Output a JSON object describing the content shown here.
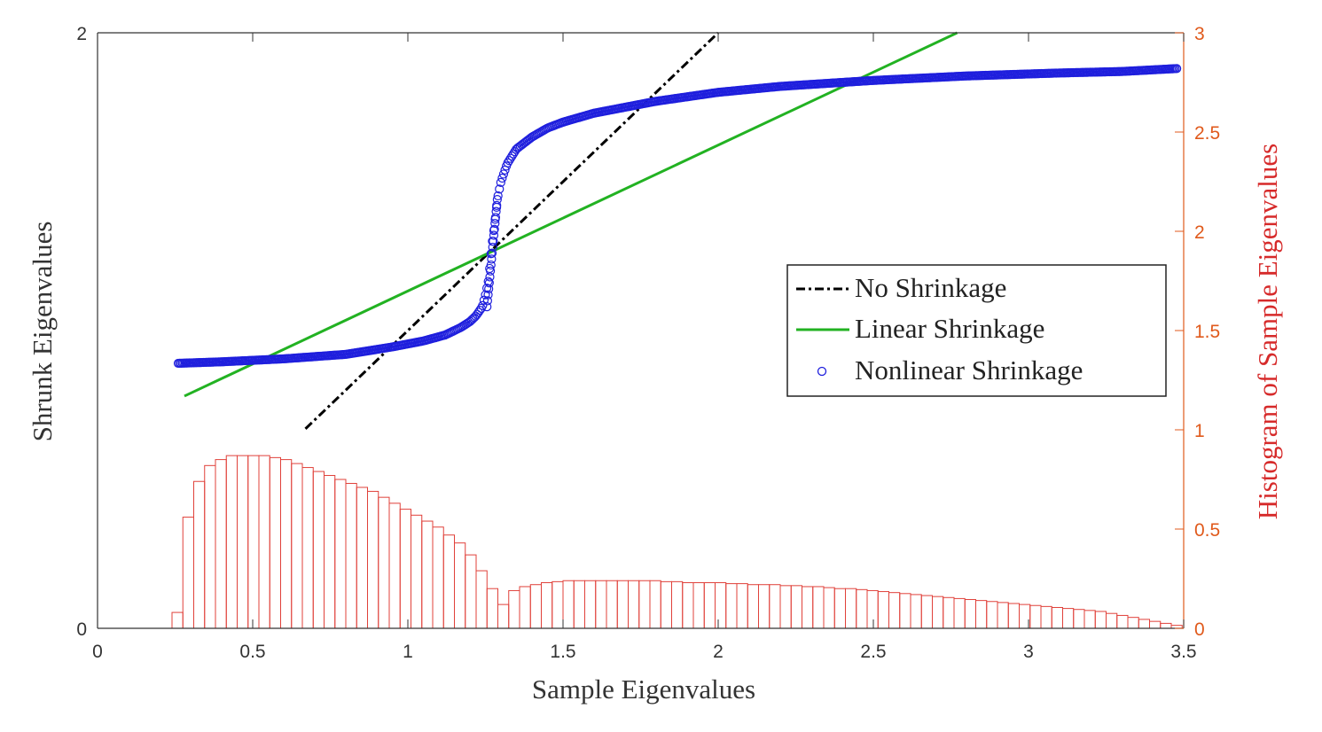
{
  "chart_data": {
    "type": "line",
    "title": "",
    "xlabel": "Sample Eigenvalues",
    "ylabel": "Shrunk Eigenvalues",
    "y2label": "Histogram of Sample Eigenvalues",
    "xlim": [
      0,
      3.5
    ],
    "ylim": [
      0,
      2
    ],
    "y2lim": [
      0,
      3
    ],
    "xticks": [
      "0",
      "0.5",
      "1",
      "1.5",
      "2",
      "2.5",
      "3",
      "3.5"
    ],
    "yticks": [
      "0",
      "2"
    ],
    "y2ticks": [
      "0",
      "0.5",
      "1",
      "1.5",
      "2",
      "2.5",
      "3"
    ],
    "grid": false,
    "legend_position": "center-right",
    "series": [
      {
        "name": "No Shrinkage",
        "style": "dash-dot",
        "color": "#000000",
        "x": [
          0.67,
          2.0
        ],
        "y": [
          0.67,
          2.0
        ]
      },
      {
        "name": "Linear Shrinkage",
        "style": "solid",
        "color": "#22b222",
        "x": [
          0.28,
          2.77
        ],
        "y": [
          0.78,
          2.0
        ]
      },
      {
        "name": "Nonlinear Shrinkage",
        "style": "circle-markers",
        "color": "#1f1fdd",
        "x": [
          0.26,
          0.4,
          0.6,
          0.8,
          0.95,
          1.05,
          1.12,
          1.17,
          1.2,
          1.22,
          1.24,
          1.25,
          1.26,
          1.27,
          1.28,
          1.29,
          1.3,
          1.32,
          1.35,
          1.4,
          1.45,
          1.5,
          1.6,
          1.7,
          1.8,
          2.0,
          2.2,
          2.5,
          2.8,
          3.1,
          3.3,
          3.48
        ],
        "y": [
          0.89,
          0.895,
          0.905,
          0.92,
          0.945,
          0.965,
          0.985,
          1.01,
          1.03,
          1.05,
          1.08,
          1.12,
          1.17,
          1.28,
          1.36,
          1.45,
          1.5,
          1.56,
          1.61,
          1.65,
          1.68,
          1.7,
          1.73,
          1.75,
          1.77,
          1.8,
          1.82,
          1.84,
          1.855,
          1.865,
          1.87,
          1.88
        ]
      }
    ],
    "histogram": {
      "axis": "right",
      "color": "#e0413a",
      "bin_width": 0.035,
      "x_start": 0.24,
      "x": [
        0.2575,
        0.2925,
        0.3275,
        0.3625,
        0.3975,
        0.4325,
        0.4675,
        0.5025,
        0.5375,
        0.5725,
        0.6075,
        0.6425,
        0.6775,
        0.7125,
        0.7475,
        0.7825,
        0.8175,
        0.8525,
        0.8875,
        0.9225,
        0.9575,
        0.9925,
        1.0275,
        1.0625,
        1.0975,
        1.1325,
        1.1675,
        1.2025,
        1.2375,
        1.2725,
        1.3075,
        1.3425,
        1.3775,
        1.4125,
        1.4475,
        1.4825,
        1.5175,
        1.5525,
        1.5875,
        1.6225,
        1.6575,
        1.6925,
        1.7275,
        1.7625,
        1.7975,
        1.8325,
        1.8675,
        1.9025,
        1.9375,
        1.9725,
        2.0075,
        2.0425,
        2.0775,
        2.1125,
        2.1475,
        2.1825,
        2.2175,
        2.2525,
        2.2875,
        2.3225,
        2.3575,
        2.3925,
        2.4275,
        2.4625,
        2.4975,
        2.5325,
        2.5675,
        2.6025,
        2.6375,
        2.6725,
        2.7075,
        2.7425,
        2.7775,
        2.8125,
        2.8475,
        2.8825,
        2.9175,
        2.9525,
        2.9875,
        3.0225,
        3.0575,
        3.0925,
        3.1275,
        3.1625,
        3.1975,
        3.2325,
        3.2675,
        3.3025,
        3.3375,
        3.3725,
        3.4075,
        3.4425,
        3.4775
      ],
      "values": [
        0.08,
        0.56,
        0.74,
        0.82,
        0.85,
        0.87,
        0.87,
        0.87,
        0.87,
        0.86,
        0.85,
        0.83,
        0.81,
        0.79,
        0.77,
        0.75,
        0.73,
        0.71,
        0.69,
        0.66,
        0.63,
        0.6,
        0.57,
        0.54,
        0.51,
        0.47,
        0.43,
        0.37,
        0.29,
        0.2,
        0.12,
        0.19,
        0.21,
        0.22,
        0.23,
        0.235,
        0.24,
        0.24,
        0.24,
        0.24,
        0.24,
        0.24,
        0.24,
        0.24,
        0.24,
        0.235,
        0.235,
        0.23,
        0.23,
        0.23,
        0.23,
        0.225,
        0.225,
        0.22,
        0.22,
        0.22,
        0.215,
        0.215,
        0.21,
        0.21,
        0.205,
        0.2,
        0.2,
        0.195,
        0.19,
        0.185,
        0.18,
        0.175,
        0.17,
        0.165,
        0.16,
        0.155,
        0.15,
        0.145,
        0.14,
        0.135,
        0.13,
        0.125,
        0.12,
        0.115,
        0.11,
        0.105,
        0.1,
        0.095,
        0.09,
        0.085,
        0.075,
        0.065,
        0.055,
        0.045,
        0.035,
        0.025,
        0.015
      ]
    }
  }
}
